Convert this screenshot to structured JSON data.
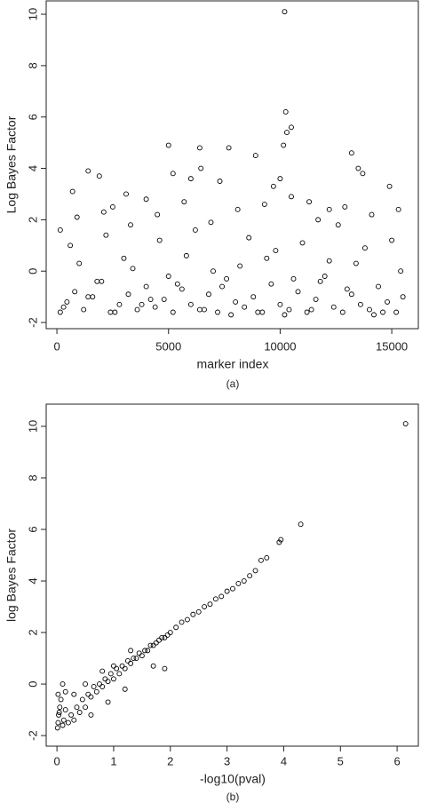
{
  "chart_data": [
    {
      "type": "scatter",
      "x_label": "marker index",
      "y_label": "Log Bayes Factor",
      "caption": "(a)",
      "xlim": [
        -480,
        16230
      ],
      "ylim": [
        -2.24,
        10.52
      ],
      "xticks": [
        0,
        5000,
        10000,
        15000
      ],
      "yticks": [
        -2,
        0,
        2,
        4,
        6,
        8,
        10
      ],
      "series": [
        {
          "color": "#000000",
          "x": [
            150,
            450,
            800,
            1200,
            1600,
            2000,
            2400,
            2800,
            3200,
            3600,
            4000,
            4400,
            4800,
            5200,
            5600,
            6000,
            6400,
            6800,
            7200,
            7600,
            8000,
            8400,
            8800,
            9200,
            9600,
            10000,
            10400,
            10800,
            11200,
            11600,
            12000,
            12400,
            12800,
            13200,
            13600,
            14000,
            14400,
            14800,
            15200,
            15500,
            300,
            1000,
            1800,
            2600,
            3400,
            4200,
            5000,
            5800,
            6600,
            7400,
            8200,
            9000,
            9800,
            10600,
            11400,
            12200,
            13000,
            13800,
            14600,
            15400,
            600,
            1400,
            2200,
            3000,
            3800,
            4600,
            5400,
            6200,
            7000,
            7800,
            8600,
            9400,
            10200,
            11000,
            11800,
            12600,
            13400,
            14200,
            15000,
            15300,
            150,
            900,
            2100,
            3300,
            4500,
            5700,
            6900,
            8100,
            9300,
            10500,
            11700,
            12900,
            14100,
            1400,
            1900,
            5000,
            5200,
            6400,
            6450,
            7700,
            8900,
            10000,
            10150,
            10200,
            10250,
            10300,
            10500,
            13200,
            13500,
            13700,
            700,
            3100,
            9700,
            14900,
            11300,
            12200,
            7300,
            4000,
            2500,
            6000
          ],
          "values": [
            -1.6,
            -1.2,
            -0.8,
            -1.5,
            -1.0,
            -0.4,
            -1.6,
            -1.3,
            -0.9,
            -1.5,
            -0.6,
            -1.4,
            -1.1,
            -1.6,
            -0.7,
            -1.3,
            -1.5,
            -0.9,
            -1.6,
            -0.3,
            -1.2,
            -1.4,
            -1.0,
            -1.6,
            -0.5,
            -1.3,
            -1.5,
            -0.8,
            -1.6,
            -1.1,
            -0.2,
            -1.4,
            -1.6,
            -0.9,
            -1.3,
            -1.5,
            -0.6,
            -1.2,
            -1.6,
            -1.0,
            -1.4,
            0.3,
            -0.4,
            -1.6,
            0.1,
            -1.1,
            -0.2,
            0.6,
            -1.5,
            -0.6,
            0.2,
            -1.6,
            0.8,
            -0.3,
            -1.5,
            0.4,
            -0.7,
            0.9,
            -1.6,
            0.0,
            1.0,
            -1.0,
            1.4,
            0.5,
            -1.3,
            1.2,
            -0.5,
            1.6,
            0.0,
            -1.7,
            1.3,
            0.5,
            -1.7,
            1.1,
            -0.4,
            1.8,
            0.3,
            -1.7,
            1.2,
            2.4,
            1.6,
            2.1,
            2.3,
            1.8,
            2.2,
            2.7,
            1.9,
            2.4,
            2.6,
            2.9,
            2.0,
            2.5,
            2.2,
            3.9,
            3.7,
            4.9,
            3.8,
            4.8,
            4.0,
            4.8,
            4.5,
            3.6,
            4.9,
            10.1,
            6.2,
            5.4,
            5.6,
            4.6,
            4.0,
            3.8,
            3.1,
            3.0,
            3.3,
            3.3,
            2.7,
            2.4,
            3.5,
            2.8,
            2.5,
            3.6
          ]
        }
      ]
    },
    {
      "type": "scatter",
      "x_label": "-log10(pval)",
      "y_label": "log Bayes Factor",
      "caption": "(b)",
      "xlim": [
        -0.19,
        6.39
      ],
      "ylim": [
        -2.41,
        10.86
      ],
      "xticks": [
        0,
        1,
        2,
        3,
        4,
        5,
        6
      ],
      "yticks": [
        -2,
        0,
        2,
        4,
        6,
        8,
        10
      ],
      "series": [
        {
          "color": "#000000",
          "x": [
            0.01,
            0.02,
            0.03,
            0.05,
            0.07,
            0.1,
            0.12,
            0.15,
            0.02,
            0.04,
            0.2,
            0.25,
            0.3,
            0.35,
            0.4,
            0.45,
            0.5,
            0.55,
            0.6,
            0.65,
            0.7,
            0.75,
            0.8,
            0.85,
            0.9,
            0.95,
            1.0,
            1.05,
            1.1,
            1.15,
            1.2,
            1.25,
            1.3,
            1.35,
            1.4,
            1.45,
            1.5,
            1.55,
            1.6,
            1.65,
            1.7,
            1.75,
            1.8,
            1.85,
            1.9,
            1.95,
            2.0,
            2.1,
            2.2,
            2.3,
            2.4,
            2.5,
            2.6,
            2.7,
            2.8,
            2.9,
            3.0,
            3.1,
            3.2,
            3.3,
            3.4,
            3.5,
            3.6,
            3.7,
            3.92,
            3.95,
            4.3,
            6.15,
            1.9,
            0.1,
            0.3,
            0.5,
            0.8,
            1.0,
            1.3,
            0.15,
            0.6,
            0.9,
            1.2,
            1.7
          ],
          "values": [
            -1.7,
            -1.5,
            -1.2,
            -0.9,
            -0.6,
            -1.6,
            -1.4,
            -1.0,
            -0.4,
            -1.1,
            -1.5,
            -1.2,
            -1.4,
            -0.9,
            -1.1,
            -0.6,
            -0.9,
            -0.4,
            -0.5,
            -0.1,
            -0.3,
            0.0,
            -0.1,
            0.2,
            0.1,
            0.4,
            0.2,
            0.6,
            0.4,
            0.7,
            0.6,
            0.9,
            0.8,
            1.0,
            1.0,
            1.2,
            1.1,
            1.3,
            1.3,
            1.5,
            1.5,
            1.6,
            1.7,
            1.8,
            1.8,
            1.9,
            2.0,
            2.2,
            2.4,
            2.5,
            2.7,
            2.8,
            3.0,
            3.1,
            3.3,
            3.4,
            3.6,
            3.7,
            3.9,
            4.0,
            4.2,
            4.4,
            4.8,
            4.9,
            5.5,
            5.6,
            6.2,
            10.1,
            0.6,
            0.0,
            -0.4,
            0.0,
            0.5,
            0.7,
            1.3,
            -0.3,
            -1.2,
            -0.7,
            -0.2,
            0.7
          ]
        }
      ]
    }
  ]
}
